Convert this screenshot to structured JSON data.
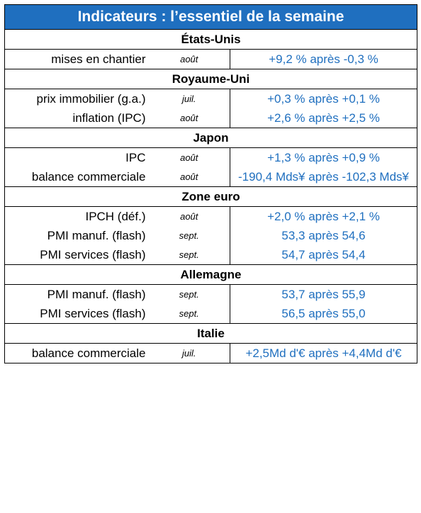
{
  "title": "Indicateurs : l’essentiel de la semaine",
  "sections": [
    {
      "name": "États-Unis",
      "rows": [
        {
          "label": "mises en chantier",
          "period": "août",
          "value": "+9,2 % après -0,3 %"
        }
      ]
    },
    {
      "name": "Royaume-Uni",
      "rows": [
        {
          "label": "prix immobilier (g.a.)",
          "period": "juil.",
          "value": "+0,3 % après +0,1 %"
        },
        {
          "label": "inflation (IPC)",
          "period": "août",
          "value": "+2,6 % après +2,5 %"
        }
      ]
    },
    {
      "name": "Japon",
      "rows": [
        {
          "label": "IPC",
          "period": "août",
          "value": "+1,3 % après +0,9 %"
        },
        {
          "label": "balance commerciale",
          "period": "août",
          "value": "-190,4 Mds¥ après -102,3 Mds¥"
        }
      ]
    },
    {
      "name": "Zone euro",
      "rows": [
        {
          "label": "IPCH (déf.)",
          "period": "août",
          "value": "+2,0 % après +2,1 %"
        },
        {
          "label": "PMI manuf. (flash)",
          "period": "sept.",
          "value": "53,3 après 54,6"
        },
        {
          "label": "PMI services (flash)",
          "period": "sept.",
          "value": "54,7 après 54,4"
        }
      ]
    },
    {
      "name": "Allemagne",
      "rows": [
        {
          "label": "PMI manuf. (flash)",
          "period": "sept.",
          "value": "53,7 après 55,9"
        },
        {
          "label": "PMI services (flash)",
          "period": "sept.",
          "value": "56,5 après 55,0"
        }
      ]
    },
    {
      "name": "Italie",
      "rows": [
        {
          "label": "balance commerciale",
          "period": "juil.",
          "value": "+2,5Md d'€ après +4,4Md d'€"
        }
      ]
    }
  ],
  "colors": {
    "header_bg": "#1f6fbf",
    "value_text": "#1f6fbf"
  }
}
